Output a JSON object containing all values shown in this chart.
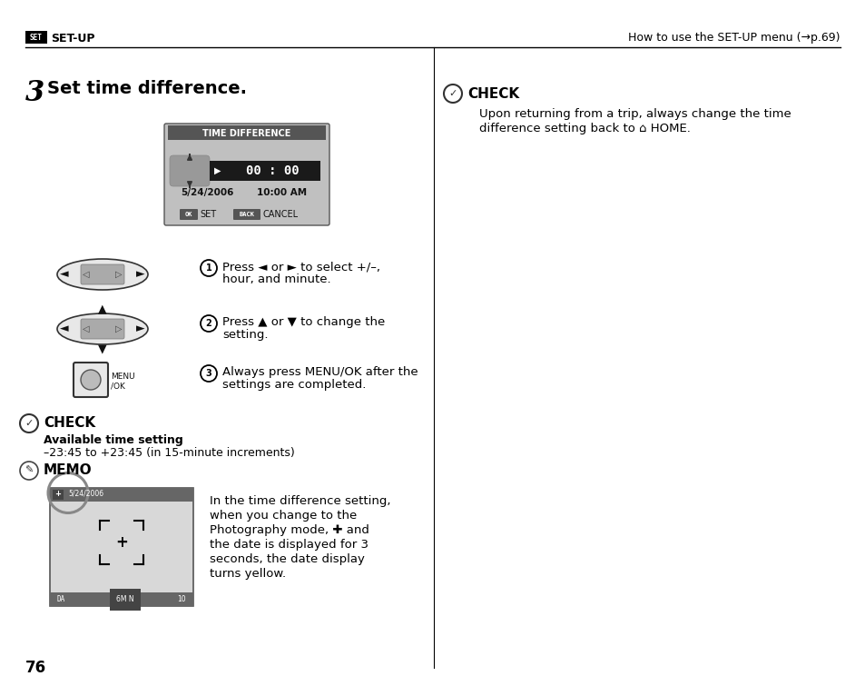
{
  "page_num": "76",
  "header_left": "SET-UP",
  "header_left_icon": "SET",
  "header_right": "How to use the SET-UP menu (→p.69)",
  "section_title_num": "3",
  "section_title": "Set time difference.",
  "lcd_title": "TIME DIFFERENCE",
  "lcd_date": "5/24/2006",
  "lcd_time": "10:00 AM",
  "lcd_time_display": "00 : 00",
  "lcd_btn1_label": "SET",
  "lcd_btn2_label": "CANCEL",
  "step1_num": "1",
  "step1_text_line1": "Press ◄ or ► to select +/–,",
  "step1_text_line2": "hour, and minute.",
  "step2_num": "2",
  "step2_text_line1": "Press ▲ or ▼ to change the",
  "step2_text_line2": "setting.",
  "step3_num": "3",
  "step3_text_line1": "Always press MENU/OK after the",
  "step3_text_line2": "settings are completed.",
  "check_title": "CHECK",
  "check_bold": "Available time setting",
  "check_text": "–23:45 to +23:45 (in 15-minute increments)",
  "memo_title": "MEMO",
  "memo_text_line1": "In the time difference setting,",
  "memo_text_line2": "when you change to the",
  "memo_text_line3": "Photography mode, ✚ and",
  "memo_text_line4": "the date is displayed for 3",
  "memo_text_line5": "seconds, the date display",
  "memo_text_line6": "turns yellow.",
  "right_check_title": "CHECK",
  "right_check_text_line1": "Upon returning from a trip, always change the time",
  "right_check_text_line2": "difference setting back to ⌂ HOME.",
  "bg_color": "#ffffff",
  "text_color": "#000000"
}
